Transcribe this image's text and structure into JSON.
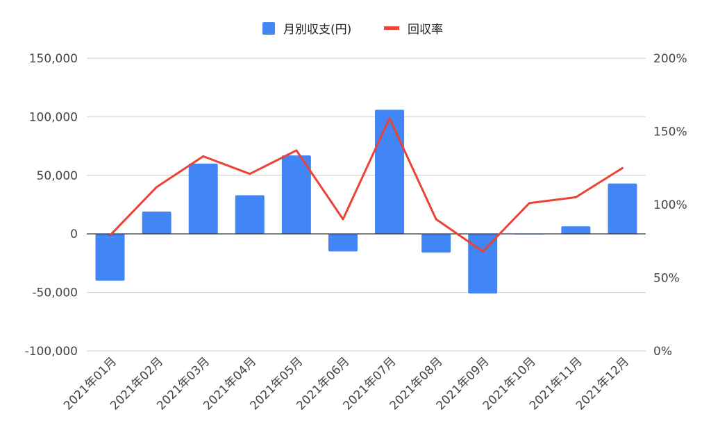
{
  "chart_data": {
    "type": "bar",
    "title": "",
    "categories": [
      "2021年01月",
      "2021年02月",
      "2021年03月",
      "2021年04月",
      "2021年05月",
      "2021年06月",
      "2021年07月",
      "2021年08月",
      "2021年09月",
      "2021年10月",
      "2021年11月",
      "2021年12月"
    ],
    "series": [
      {
        "name": "月別収支(円)",
        "type": "bar",
        "axis": "left",
        "color": "#4285f4",
        "values": [
          -40000,
          19000,
          60000,
          33000,
          67000,
          -15000,
          106000,
          -16000,
          -51000,
          0,
          6500,
          43000
        ]
      },
      {
        "name": "回収率",
        "type": "line",
        "axis": "right",
        "color": "#ea4335",
        "values": [
          79,
          112,
          133,
          121,
          137,
          90,
          159,
          90,
          68,
          101,
          105,
          125
        ]
      }
    ],
    "left_axis": {
      "ylim": [
        -100000,
        150000
      ],
      "ticks": [
        150000,
        100000,
        50000,
        0,
        -50000,
        -100000
      ],
      "tick_labels": [
        "150,000",
        "100,000",
        "50,000",
        "0",
        "-50,000",
        "-100,000"
      ]
    },
    "right_axis": {
      "ylim": [
        0,
        200
      ],
      "ticks": [
        200,
        150,
        100,
        50,
        0
      ],
      "tick_labels": [
        "200%",
        "150%",
        "100%",
        "50%",
        "0%"
      ]
    },
    "grid": true,
    "legend_position": "top-center"
  }
}
